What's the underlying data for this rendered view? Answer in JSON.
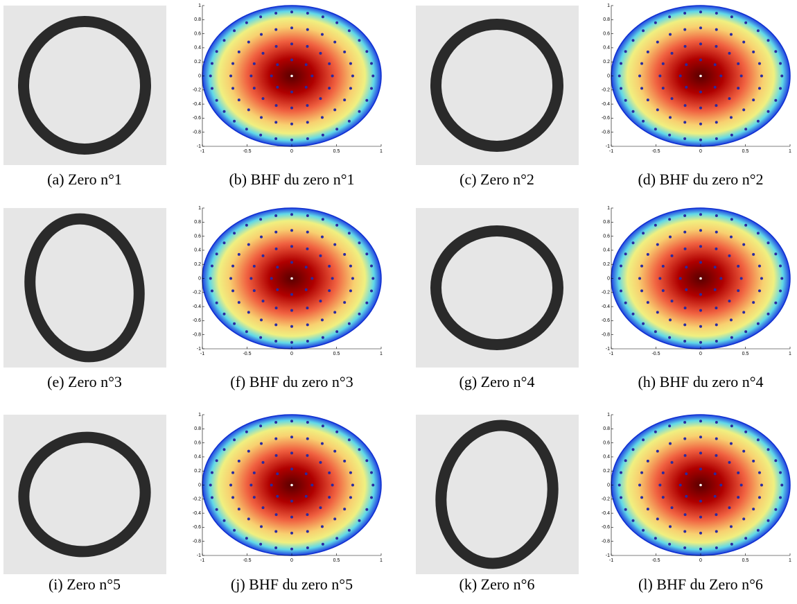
{
  "figures": [
    {
      "caption": "(a) Zero n°1"
    },
    {
      "caption": "(b) BHF du zero n°1"
    },
    {
      "caption": "(c) Zero n°2"
    },
    {
      "caption": "(d) BHF du zero n°2"
    },
    {
      "caption": "(e) Zero n°3"
    },
    {
      "caption": "(f) BHF du zero n°3"
    },
    {
      "caption": "(g) Zero n°4"
    },
    {
      "caption": "(h) BHF du zero n°4"
    },
    {
      "caption": "(i) Zero n°5"
    },
    {
      "caption": "(j) BHF du zero n°5"
    },
    {
      "caption": "(k) Zero n°6"
    },
    {
      "caption": "(l) BHF du Zero n°6"
    }
  ],
  "plot_axes": {
    "xticks": [
      -1,
      -0.5,
      0,
      0.5,
      1
    ],
    "yticks": [
      -1,
      -0.8,
      -0.6,
      -0.4,
      -0.2,
      0,
      0.2,
      0.4,
      0.6,
      0.8,
      1
    ]
  }
}
